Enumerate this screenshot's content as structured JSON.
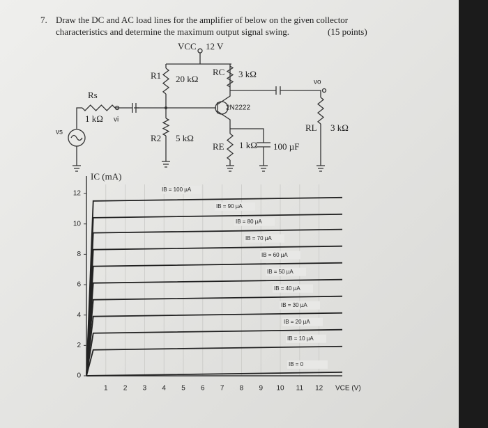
{
  "problem": {
    "number": "7.",
    "line1": "Draw the DC and AC load lines for the amplifier of below on the given collector",
    "line2": "characteristics and determine the maximum output signal swing.",
    "points": "(15 points)"
  },
  "circuit": {
    "vcc": "VCC",
    "vcc_value": "12 V",
    "r1": "R1",
    "r1_value": "20 kΩ",
    "rc": "RC",
    "rc_value": "3 kΩ",
    "rs": "Rs",
    "rs_value": "1 kΩ",
    "vi": "vi",
    "vs": "vs",
    "r2": "R2",
    "r2_value": "5 kΩ",
    "transistor": "2N2222",
    "re": "RE",
    "re_value": "1 kΩ",
    "ce_value": "100 µF",
    "vo": "vo",
    "rl": "RL",
    "rl_value": "3 kΩ"
  },
  "graph": {
    "y_label": "IC (mA)",
    "x_label": "VCE (V)",
    "xlim": [
      0,
      13.2
    ],
    "ylim": [
      0,
      12.6
    ],
    "xticks": [
      1,
      2,
      3,
      4,
      5,
      6,
      7,
      8,
      9,
      10,
      11,
      12
    ],
    "yticks": [
      0,
      2,
      4,
      6,
      8,
      10,
      12
    ],
    "curves": [
      {
        "label": "IB = 100 µA",
        "ic": 11.6
      },
      {
        "label": "IB = 90 µA",
        "ic": 10.5
      },
      {
        "label": "IB = 80 µA",
        "ic": 9.5
      },
      {
        "label": "IB = 70 µA",
        "ic": 8.4
      },
      {
        "label": "IB = 60 µA",
        "ic": 7.3
      },
      {
        "label": "IB = 50 µA",
        "ic": 6.2
      },
      {
        "label": "IB = 40 µA",
        "ic": 5.1
      },
      {
        "label": "IB = 30 µA",
        "ic": 4.0
      },
      {
        "label": "IB = 20 µA",
        "ic": 2.9
      },
      {
        "label": "IB = 10 µA",
        "ic": 1.8
      },
      {
        "label": "IB = 0",
        "ic": 0.1
      }
    ]
  }
}
